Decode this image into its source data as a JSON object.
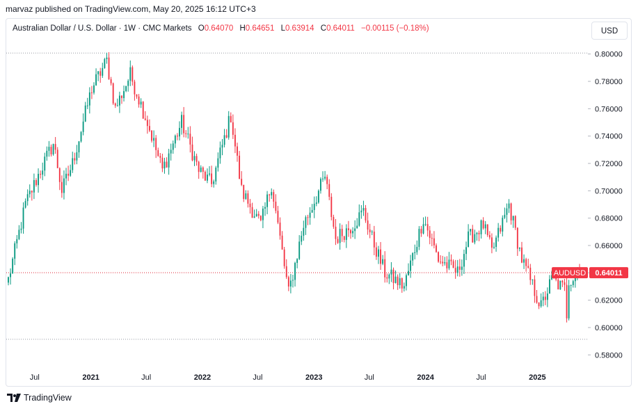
{
  "header": {
    "published_by": "marvaz published on TradingView.com, May 20, 2025 16:12 UTC+3"
  },
  "legend": {
    "symbol_description": "Australian Dollar / U.S. Dollar · 1W · CMC Markets",
    "open_label": "O",
    "open_value": "0.64070",
    "high_label": "H",
    "high_value": "0.64651",
    "low_label": "L",
    "low_value": "0.63914",
    "close_label": "C",
    "close_value": "0.64011",
    "change": "−0.00115 (−0.18%)"
  },
  "currency_button": "USD",
  "footer": {
    "brand": "TradingView"
  },
  "colors": {
    "up": "#089981",
    "down": "#f23645",
    "grid": "#e0e3eb",
    "text": "#131722"
  },
  "chart_data": {
    "type": "candlestick",
    "symbol": "AUDUSD",
    "interval": "1W",
    "price_axis": {
      "ticks": [
        "0.80000",
        "0.78000",
        "0.76000",
        "0.74000",
        "0.72000",
        "0.70000",
        "0.68000",
        "0.66000",
        "0.64000",
        "0.62000",
        "0.60000",
        "0.58000"
      ],
      "range": [
        0.57,
        0.81
      ]
    },
    "time_axis": {
      "labels": [
        {
          "text": "Jul",
          "date": "2020-07-01",
          "bold": false
        },
        {
          "text": "2021",
          "date": "2021-01-01",
          "bold": true
        },
        {
          "text": "Jul",
          "date": "2021-07-01",
          "bold": false
        },
        {
          "text": "2022",
          "date": "2022-01-01",
          "bold": true
        },
        {
          "text": "Jul",
          "date": "2022-07-01",
          "bold": false
        },
        {
          "text": "2023",
          "date": "2023-01-01",
          "bold": true
        },
        {
          "text": "Jul",
          "date": "2023-07-01",
          "bold": false
        },
        {
          "text": "2024",
          "date": "2024-01-01",
          "bold": true
        },
        {
          "text": "Jul",
          "date": "2024-07-01",
          "bold": false
        },
        {
          "text": "2025",
          "date": "2025-01-01",
          "bold": true
        }
      ]
    },
    "reference_lines": [
      {
        "price": 0.8007,
        "style": "dotted"
      },
      {
        "price": 0.6401,
        "style": "dotted"
      },
      {
        "price": 0.5914,
        "style": "dotted"
      }
    ],
    "last_price": {
      "label": "AUDUSD",
      "value": "0.64011",
      "price": 0.64011
    },
    "start_date": "2020-04-06",
    "end_date": "2025-05-19",
    "close_path": [
      [
        "2020-04-06",
        0.635
      ],
      [
        "2020-06-01",
        0.69
      ],
      [
        "2020-07-20",
        0.715
      ],
      [
        "2020-09-01",
        0.735
      ],
      [
        "2020-09-28",
        0.7
      ],
      [
        "2020-11-02",
        0.72
      ],
      [
        "2021-01-04",
        0.775
      ],
      [
        "2021-02-22",
        0.795
      ],
      [
        "2021-03-22",
        0.76
      ],
      [
        "2021-05-10",
        0.785
      ],
      [
        "2021-07-05",
        0.75
      ],
      [
        "2021-08-23",
        0.715
      ],
      [
        "2021-10-25",
        0.75
      ],
      [
        "2021-12-20",
        0.715
      ],
      [
        "2022-01-31",
        0.705
      ],
      [
        "2022-04-04",
        0.755
      ],
      [
        "2022-05-09",
        0.7
      ],
      [
        "2022-07-11",
        0.675
      ],
      [
        "2022-08-15",
        0.705
      ],
      [
        "2022-10-10",
        0.625
      ],
      [
        "2022-11-28",
        0.675
      ],
      [
        "2023-02-06",
        0.71
      ],
      [
        "2023-03-13",
        0.665
      ],
      [
        "2023-05-08",
        0.675
      ],
      [
        "2023-06-12",
        0.685
      ],
      [
        "2023-07-10",
        0.665
      ],
      [
        "2023-08-21",
        0.64
      ],
      [
        "2023-10-23",
        0.63
      ],
      [
        "2023-12-25",
        0.68
      ],
      [
        "2024-02-12",
        0.65
      ],
      [
        "2024-04-15",
        0.64
      ],
      [
        "2024-05-20",
        0.665
      ],
      [
        "2024-07-08",
        0.675
      ],
      [
        "2024-08-05",
        0.655
      ],
      [
        "2024-09-30",
        0.69
      ],
      [
        "2024-11-11",
        0.65
      ],
      [
        "2025-01-13",
        0.615
      ],
      [
        "2025-02-17",
        0.635
      ],
      [
        "2025-03-31",
        0.628
      ],
      [
        "2025-04-07",
        0.61
      ],
      [
        "2025-04-14",
        0.635
      ],
      [
        "2025-05-19",
        0.64
      ]
    ]
  }
}
